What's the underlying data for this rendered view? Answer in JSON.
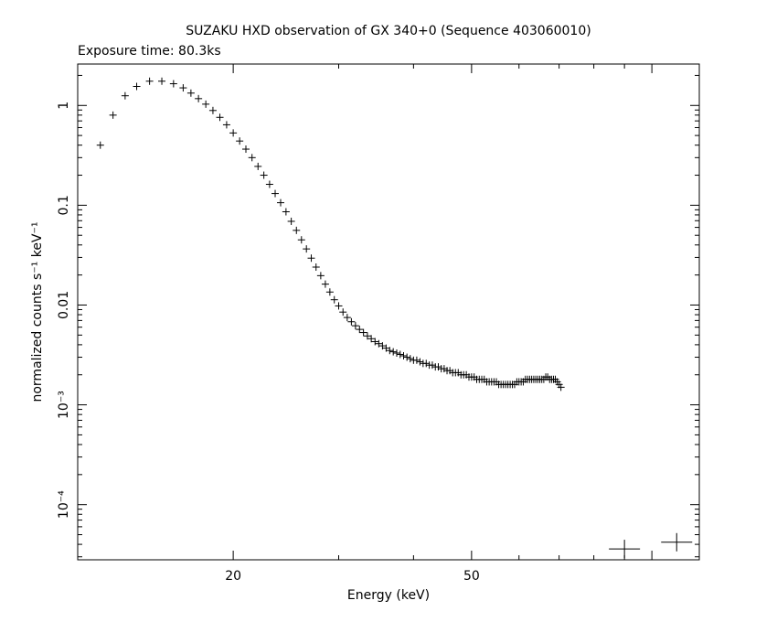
{
  "chart_data": {
    "type": "scatter",
    "title": "SUZAKU HXD observation of GX 340+0 (Sequence 403060010)",
    "subtitle": "Exposure time: 80.3ks",
    "xlabel": "Energy (keV)",
    "ylabel": "normalized counts s⁻¹ keV⁻¹",
    "xscale": "log",
    "yscale": "log",
    "xlim": [
      11.0,
      120.0
    ],
    "ylim": [
      2.8e-05,
      2.6
    ],
    "x_ticks": [
      {
        "value": 20,
        "label": "20"
      },
      {
        "value": 50,
        "label": "50"
      }
    ],
    "y_ticks": [
      {
        "value": 1,
        "label": "1"
      },
      {
        "value": 0.1,
        "label": "0.1"
      },
      {
        "value": 0.01,
        "label": "0.01"
      },
      {
        "value": 0.001,
        "label": "10⁻³"
      },
      {
        "value": 0.0001,
        "label": "10⁻⁴"
      }
    ],
    "grid": false,
    "series": [
      {
        "points": [
          [
            12.0,
            0.4
          ],
          [
            12.6,
            0.8
          ],
          [
            13.2,
            1.25
          ],
          [
            13.8,
            1.55
          ],
          [
            14.5,
            1.75
          ],
          [
            15.2,
            1.75
          ],
          [
            15.9,
            1.65
          ],
          [
            16.5,
            1.5
          ],
          [
            17.0,
            1.33
          ],
          [
            17.5,
            1.17
          ],
          [
            18.0,
            1.03
          ],
          [
            18.5,
            0.89
          ],
          [
            19.0,
            0.76
          ],
          [
            19.5,
            0.64
          ],
          [
            20.0,
            0.53
          ],
          [
            20.5,
            0.44
          ],
          [
            21.0,
            0.365
          ],
          [
            21.5,
            0.3
          ],
          [
            22.0,
            0.245
          ],
          [
            22.5,
            0.2
          ],
          [
            23.0,
            0.162
          ],
          [
            23.5,
            0.131
          ],
          [
            24.0,
            0.106
          ],
          [
            24.5,
            0.086
          ],
          [
            25.0,
            0.069
          ],
          [
            25.5,
            0.056
          ],
          [
            26.0,
            0.045
          ],
          [
            26.5,
            0.0365
          ],
          [
            27.0,
            0.0295
          ],
          [
            27.5,
            0.024
          ],
          [
            28.0,
            0.0197
          ],
          [
            28.5,
            0.0162
          ],
          [
            29.0,
            0.0135
          ],
          [
            29.5,
            0.0113
          ],
          [
            30.0,
            0.0098
          ],
          [
            30.5,
            0.0085
          ],
          [
            31.0,
            0.0075
          ],
          [
            31.5,
            0.0068
          ],
          [
            32.0,
            0.0062
          ],
          [
            32.5,
            0.0057
          ],
          [
            33.0,
            0.0053
          ],
          [
            33.5,
            0.0049
          ],
          [
            34.0,
            0.0046
          ],
          [
            34.5,
            0.0043
          ],
          [
            35.0,
            0.0041
          ],
          [
            35.5,
            0.0039
          ],
          [
            36.0,
            0.0037
          ],
          [
            36.5,
            0.0035
          ],
          [
            37.0,
            0.0034
          ],
          [
            37.5,
            0.0033
          ],
          [
            38.0,
            0.0032
          ],
          [
            38.5,
            0.0031
          ],
          [
            39.0,
            0.003
          ],
          [
            39.5,
            0.0029
          ],
          [
            40.0,
            0.0028
          ],
          [
            40.5,
            0.0028
          ],
          [
            41.0,
            0.0027
          ],
          [
            41.5,
            0.0026
          ],
          [
            42.0,
            0.0026
          ],
          [
            42.5,
            0.0025
          ],
          [
            43.0,
            0.0025
          ],
          [
            43.5,
            0.0024
          ],
          [
            44.0,
            0.0024
          ],
          [
            44.5,
            0.0023
          ],
          [
            45.0,
            0.0023
          ],
          [
            45.5,
            0.0022
          ],
          [
            46.0,
            0.0022
          ],
          [
            46.5,
            0.0021
          ],
          [
            47.0,
            0.0021
          ],
          [
            47.5,
            0.0021
          ],
          [
            48.0,
            0.002
          ],
          [
            48.5,
            0.002
          ],
          [
            49.0,
            0.002
          ],
          [
            49.5,
            0.0019
          ],
          [
            50.0,
            0.0019
          ],
          [
            50.5,
            0.0019
          ],
          [
            51.0,
            0.0018
          ],
          [
            51.5,
            0.0018
          ],
          [
            52.0,
            0.0018
          ],
          [
            52.5,
            0.0018
          ],
          [
            53.0,
            0.0017
          ],
          [
            53.5,
            0.0017
          ],
          [
            54.0,
            0.0017
          ],
          [
            54.5,
            0.0017
          ],
          [
            55.0,
            0.0017
          ],
          [
            55.5,
            0.0016
          ],
          [
            56.0,
            0.0016
          ],
          [
            56.5,
            0.0016
          ],
          [
            57.0,
            0.0016
          ],
          [
            57.5,
            0.0016
          ],
          [
            58.0,
            0.0016
          ],
          [
            58.5,
            0.0016
          ],
          [
            59.0,
            0.0016
          ],
          [
            59.5,
            0.0017
          ],
          [
            60.0,
            0.0017
          ],
          [
            60.5,
            0.0017
          ],
          [
            61.0,
            0.0017
          ],
          [
            61.5,
            0.0018
          ],
          [
            62.0,
            0.0018
          ],
          [
            62.5,
            0.0018
          ],
          [
            63.0,
            0.0018
          ],
          [
            63.5,
            0.0018
          ],
          [
            64.0,
            0.0018
          ],
          [
            64.5,
            0.0018
          ],
          [
            65.0,
            0.0018
          ],
          [
            65.5,
            0.0018
          ],
          [
            66.0,
            0.0018
          ],
          [
            66.5,
            0.0019
          ],
          [
            67.0,
            0.0019
          ],
          [
            67.5,
            0.0018
          ],
          [
            68.0,
            0.0018
          ],
          [
            68.5,
            0.0018
          ],
          [
            69.0,
            0.0018
          ],
          [
            69.5,
            0.0017
          ],
          [
            70.0,
            0.0016
          ],
          [
            70.5,
            0.0015
          ]
        ]
      },
      {
        "points": [
          [
            90.0,
            3.6e-05
          ],
          [
            110.0,
            4.2e-05
          ]
        ]
      }
    ]
  }
}
